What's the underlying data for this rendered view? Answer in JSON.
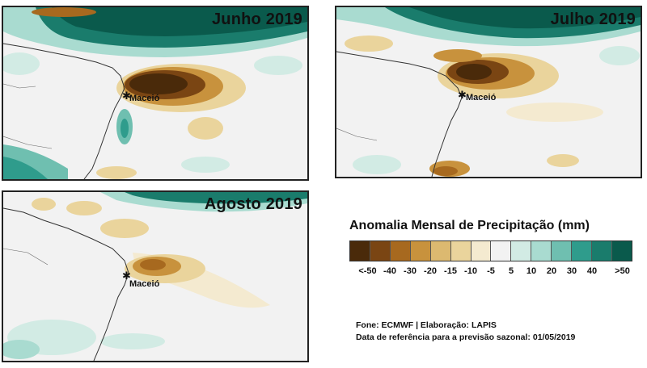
{
  "panels": [
    {
      "title": "Junho 2019",
      "city": "Maceió"
    },
    {
      "title": "Julho 2019",
      "city": "Maceió"
    },
    {
      "title": "Agosto 2019",
      "city": "Maceió"
    }
  ],
  "legend": {
    "title": "Anomalia Mensal de Precipitação (mm)",
    "labels": [
      "<-50",
      "-40",
      "-30",
      "-20",
      "-15",
      "-10",
      "-5",
      "5",
      "10",
      "20",
      "30",
      "40",
      ">50"
    ],
    "colors": [
      "#4a2a0a",
      "#7a4513",
      "#a7691f",
      "#c8923d",
      "#dcb970",
      "#ead49c",
      "#f4ead0",
      "#f2f2f2",
      "#d2ebe4",
      "#a9dbd0",
      "#6fbfb0",
      "#2f9c8c",
      "#1a7c6c",
      "#0a5a4c"
    ]
  },
  "credits": {
    "line1": "Fone: ECMWF | Elaboração: LAPIS",
    "line2": "Data de referência para a previsão sazonal: 01/05/2019"
  }
}
